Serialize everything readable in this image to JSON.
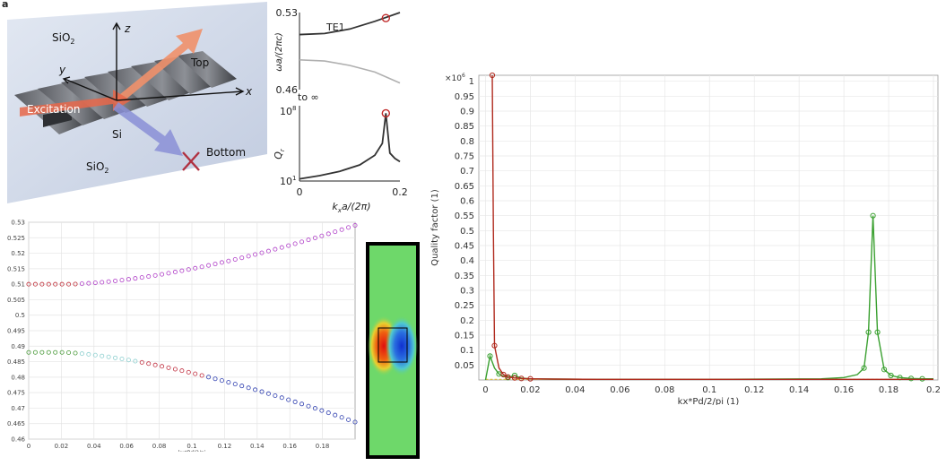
{
  "panel_label": "a",
  "schematic": {
    "labels": {
      "z": "z",
      "y": "y",
      "x": "x",
      "sio2_top": "SiO",
      "si": "Si",
      "sio2_bottom": "SiO",
      "sub2": "2",
      "top": "Top",
      "excitation": "Excitation",
      "bottom": "Bottom"
    },
    "colors": {
      "glass": "#c9d4e6",
      "arrow_top": "#f0906a",
      "arrow_exc": "#e8674a",
      "arrow_bottom": "#8a8fd6",
      "cross": "#b03040"
    }
  },
  "chart_data": [
    {
      "id": "band_inset",
      "type": "line",
      "series_label": "TE1",
      "ylabel": "ωa/(2πc)",
      "ytick_labels": [
        "0.53",
        "0.46"
      ],
      "ylim": [
        0.46,
        0.53
      ],
      "x": [
        0,
        0.05,
        0.1,
        0.15,
        0.2
      ],
      "upper": [
        0.51,
        0.511,
        0.515,
        0.522,
        0.53
      ],
      "lower": [
        0.487,
        0.486,
        0.482,
        0.476,
        0.466
      ],
      "marker": {
        "x": 0.172,
        "y": 0.525
      },
      "colors": {
        "upper": "#333333",
        "lower": "#b0b0b0",
        "marker": "#c02a2a"
      }
    },
    {
      "id": "q_inset",
      "type": "line",
      "top_annotation": "to ∞",
      "ylabel": "Q",
      "ylabel_sub": "r",
      "ytick_labels": [
        "10",
        "10"
      ],
      "ytick_exponents": [
        "8",
        "1"
      ],
      "xlabel": "k",
      "xlabel_sub": "x",
      "xlabel_rest": "a/(2π)",
      "xtick_labels": [
        "0",
        "0.2"
      ],
      "xlim": [
        0,
        0.2
      ],
      "log_ylim": [
        1,
        8
      ],
      "x": [
        0,
        0.04,
        0.08,
        0.12,
        0.15,
        0.165,
        0.172,
        0.18,
        0.19,
        0.2
      ],
      "log_q": [
        1.2,
        1.5,
        1.9,
        2.5,
        3.4,
        4.5,
        7.3,
        3.6,
        3.1,
        2.8
      ],
      "marker": {
        "x": 0.172,
        "y": 7.3
      },
      "colors": {
        "line": "#333333",
        "marker": "#c02a2a"
      }
    },
    {
      "id": "dispersion_plot",
      "type": "scatter",
      "xlabel": "kx*Pd/2/pi",
      "xlim": [
        0,
        0.2
      ],
      "ylim": [
        0.46,
        0.53
      ],
      "xtick_labels": [
        "0",
        "0.02",
        "0.04",
        "0.06",
        "0.08",
        "0.1",
        "0.12",
        "0.14",
        "0.16",
        "0.18"
      ],
      "ytick_labels": [
        "0.53",
        "0.525",
        "0.52",
        "0.515",
        "0.51",
        "0.505",
        "0.5",
        "0.495",
        "0.49",
        "0.485",
        "0.48",
        "0.475",
        "0.47",
        "0.465",
        "0.46"
      ],
      "upper_band": {
        "x_start": 0.0,
        "x_end": 0.2,
        "n": 50,
        "y0": 0.51,
        "y_end": 0.529
      },
      "lower_band": {
        "x_start": 0.0,
        "x_end": 0.2,
        "n": 50,
        "y0": 0.488,
        "y_end": 0.4655
      },
      "grid": true,
      "colors": {
        "upper_a": "#c0303a",
        "upper_b": "#b040c8",
        "lower_a": "#4a9a3a",
        "lower_b": "#8fd0d0",
        "lower_c": "#c03040",
        "lower_d": "#3040b0"
      }
    },
    {
      "id": "mode_profile",
      "type": "heatmap",
      "colors": {
        "bg": "#6ed86a",
        "frame": "#000000",
        "red": "#e01010",
        "blue": "#1030d0"
      }
    },
    {
      "id": "quality_factor",
      "type": "line",
      "ylabel": "Quality factor (1)",
      "xlabel": "kx*Pd/2/pi (1)",
      "exponent_label": "×10",
      "exponent_sup": "6",
      "xlim": [
        -0.003,
        0.202
      ],
      "ylim": [
        0,
        1.02
      ],
      "xtick_labels": [
        "0",
        "0.02",
        "0.04",
        "0.06",
        "0.08",
        "0.1",
        "0.12",
        "0.14",
        "0.16",
        "0.18",
        "0.2"
      ],
      "ytick_labels": [
        "0.05",
        "0.1",
        "0.15",
        "0.2",
        "0.25",
        "0.3",
        "0.35",
        "0.4",
        "0.45",
        "0.5",
        "0.55",
        "0.6",
        "0.65",
        "0.7",
        "0.75",
        "0.8",
        "0.85",
        "0.9",
        "0.95",
        "1"
      ],
      "grid": true,
      "series": [
        {
          "name": "red",
          "color": "#b02a1e",
          "x": [
            0.003,
            0.0035,
            0.004,
            0.006,
            0.008,
            0.01,
            0.013,
            0.016,
            0.02,
            0.03,
            0.05,
            0.1,
            0.15,
            0.2
          ],
          "y": [
            1.02,
            0.5,
            0.115,
            0.04,
            0.018,
            0.01,
            0.007,
            0.005,
            0.004,
            0.003,
            0.002,
            0.002,
            0.002,
            0.002
          ],
          "markers": [
            0.003,
            0.004,
            0.008,
            0.01,
            0.013,
            0.016,
            0.02
          ]
        },
        {
          "name": "green",
          "color": "#3aa030",
          "x": [
            0,
            0.002,
            0.004,
            0.006,
            0.008,
            0.01,
            0.013,
            0.016,
            0.02,
            0.03,
            0.05,
            0.1,
            0.15,
            0.16,
            0.166,
            0.169,
            0.171,
            0.173,
            0.175,
            0.178,
            0.181,
            0.185,
            0.19,
            0.195,
            0.2
          ],
          "y": [
            0.0,
            0.08,
            0.04,
            0.02,
            0.012,
            0.008,
            0.015,
            0.006,
            0.004,
            0.003,
            0.002,
            0.002,
            0.004,
            0.008,
            0.018,
            0.04,
            0.16,
            0.55,
            0.16,
            0.035,
            0.015,
            0.008,
            0.005,
            0.004,
            0.004
          ],
          "markers": [
            0.002,
            0.006,
            0.01,
            0.013,
            0.169,
            0.171,
            0.173,
            0.175,
            0.178,
            0.181,
            0.185,
            0.19,
            0.195
          ]
        },
        {
          "name": "yellow",
          "color": "#e0c040",
          "x": [
            0,
            0.05,
            0.1,
            0.15,
            0.2
          ],
          "y": [
            0.002,
            0.002,
            0.002,
            0.002,
            0.002
          ],
          "markers": []
        }
      ]
    }
  ]
}
